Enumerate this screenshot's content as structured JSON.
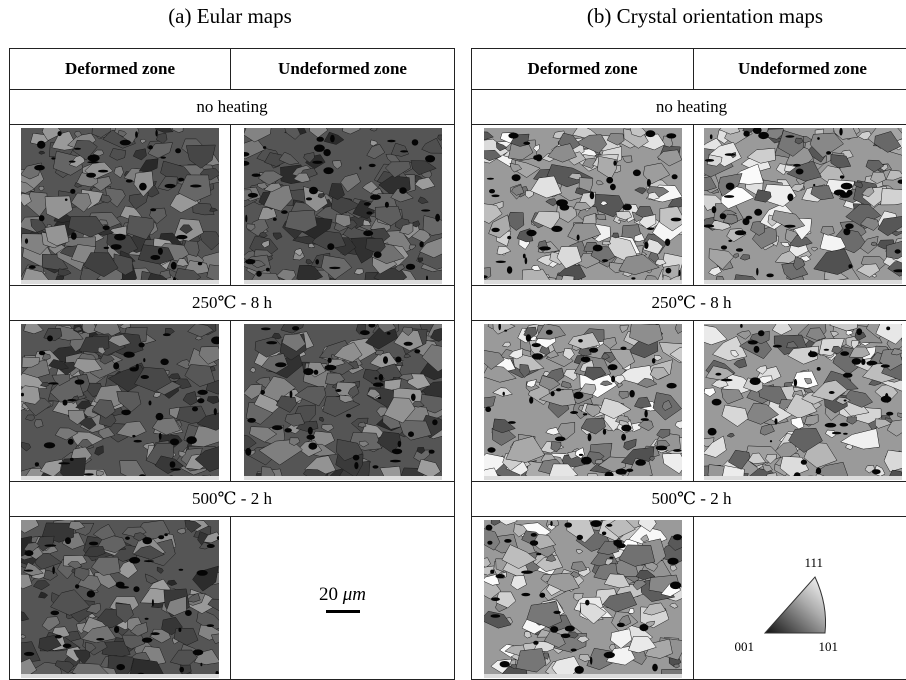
{
  "captions": {
    "a": "(a) Eular maps",
    "b": "(b) Crystal orientation maps"
  },
  "headers": {
    "deformed": "Deformed zone",
    "undeformed": "Undeformed zone"
  },
  "conditions": [
    "no heating",
    "250℃ - 8 h",
    "500℃ - 2 h"
  ],
  "scale": {
    "value": "20 ",
    "unit": "μm"
  },
  "legend": {
    "top": "111",
    "left": "001",
    "right": "101"
  },
  "colors": {
    "euler_base": "#555555",
    "orientation_base": "#9a9a9a"
  }
}
